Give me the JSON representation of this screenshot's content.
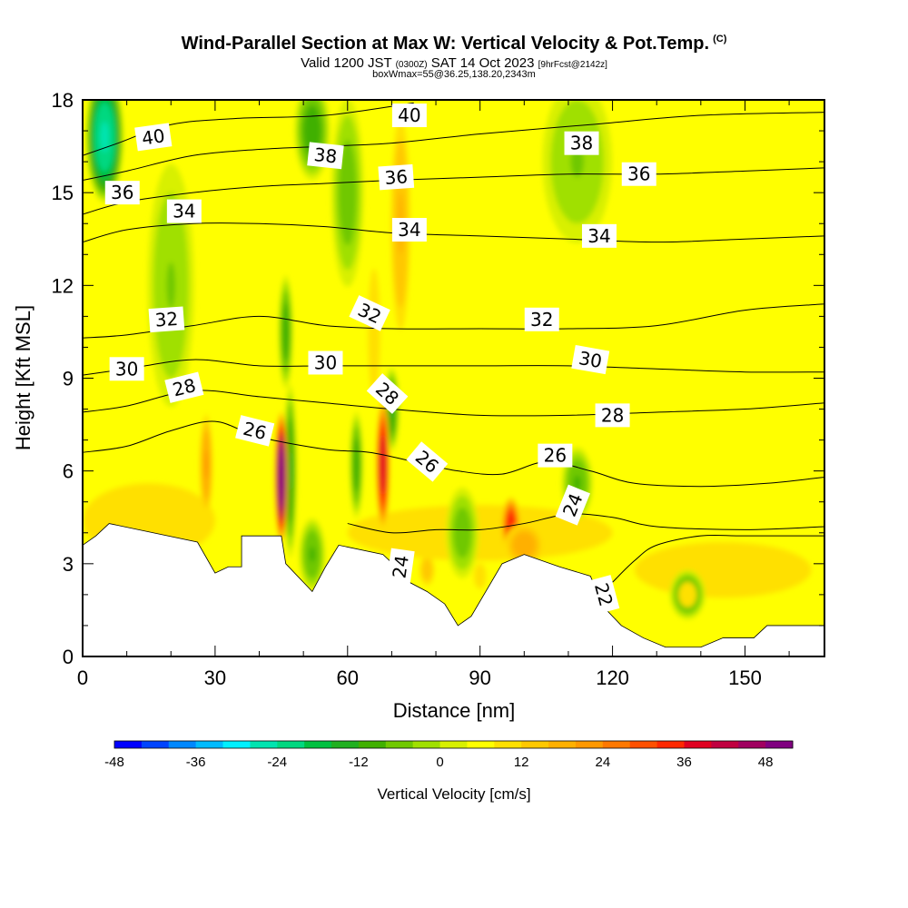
{
  "header": {
    "title": "Wind-Parallel Section at Max W: Vertical Velocity & Pot.Temp.",
    "copyright": "(C)",
    "valid_prefix": "Valid 1200 JST",
    "valid_utc": "(0300Z)",
    "valid_date": "SAT 14 Oct 2023",
    "forecast": "[9hrFcst@2142z]",
    "box_info": "boxWmax=55@36.25,138.20,2343m"
  },
  "chart_data": {
    "type": "heatmap",
    "xlabel": "Distance [nm]",
    "ylabel": "Height [Kft MSL]",
    "xlim": [
      0,
      168
    ],
    "ylim": [
      0,
      18
    ],
    "x_ticks": [
      "0",
      "30",
      "60",
      "90",
      "120",
      "150"
    ],
    "y_ticks": [
      "0",
      "3",
      "6",
      "9",
      "12",
      "15",
      "18"
    ],
    "colorbar": {
      "label": "Vertical Velocity [cm/s]",
      "min": -48,
      "max": 52,
      "step": 4,
      "tick_labels": [
        "-48",
        "-36",
        "-24",
        "-12",
        "0",
        "12",
        "24",
        "36",
        "48"
      ],
      "colors": [
        "#0000ff",
        "#0044ff",
        "#0088ff",
        "#00bbff",
        "#00f0ff",
        "#00e4b0",
        "#00d880",
        "#00c040",
        "#20b020",
        "#40b000",
        "#70c800",
        "#a0e000",
        "#d8f000",
        "#ffff00",
        "#ffe000",
        "#ffc800",
        "#ffb000",
        "#ff9800",
        "#ff7800",
        "#ff5000",
        "#ff2800",
        "#e00020",
        "#c00040",
        "#a00060",
        "#800080"
      ]
    },
    "terrain_kft": [
      [
        0,
        3.6
      ],
      [
        3,
        3.9
      ],
      [
        6,
        4.3
      ],
      [
        26,
        3.7
      ],
      [
        30,
        2.7
      ],
      [
        33,
        2.9
      ],
      [
        36,
        2.9
      ],
      [
        36,
        3.9
      ],
      [
        45,
        3.9
      ],
      [
        46,
        3.0
      ],
      [
        50,
        2.4
      ],
      [
        52,
        2.1
      ],
      [
        55,
        2.9
      ],
      [
        58,
        3.6
      ],
      [
        68,
        3.3
      ],
      [
        71,
        2.9
      ],
      [
        74,
        2.4
      ],
      [
        78,
        2.1
      ],
      [
        82,
        1.7
      ],
      [
        85,
        1.0
      ],
      [
        88,
        1.3
      ],
      [
        95,
        3.0
      ],
      [
        100,
        3.3
      ],
      [
        108,
        2.9
      ],
      [
        115,
        2.6
      ],
      [
        118,
        1.6
      ],
      [
        122,
        1.0
      ],
      [
        127,
        0.6
      ],
      [
        132,
        0.3
      ],
      [
        140,
        0.3
      ],
      [
        145,
        0.6
      ],
      [
        152,
        0.6
      ],
      [
        155,
        1.0
      ],
      [
        168,
        1.0
      ]
    ],
    "updrafts": [
      {
        "x": 45,
        "y": 5.8,
        "w_cm_s": 52,
        "width_nm": 1.5,
        "depth_kft": 2.2
      },
      {
        "x": 68,
        "y": 6.2,
        "w_cm_s": 38,
        "width_nm": 1.6,
        "depth_kft": 2.2
      },
      {
        "x": 28,
        "y": 6.2,
        "w_cm_s": 20,
        "width_nm": 1.6,
        "depth_kft": 1.8
      },
      {
        "x": 97,
        "y": 4.2,
        "w_cm_s": 34,
        "width_nm": 2.2,
        "depth_kft": 1.0
      },
      {
        "x": 100,
        "y": 3.6,
        "w_cm_s": 18,
        "width_nm": 5.0,
        "depth_kft": 0.8
      },
      {
        "x": 72,
        "y": 14.0,
        "w_cm_s": 16,
        "width_nm": 2.5,
        "depth_kft": 4.0
      },
      {
        "x": 66,
        "y": 10.5,
        "w_cm_s": 10,
        "width_nm": 2.0,
        "depth_kft": 3.0
      },
      {
        "x": 78,
        "y": 2.8,
        "w_cm_s": 14,
        "width_nm": 2.0,
        "depth_kft": 0.6
      },
      {
        "x": 90,
        "y": 2.6,
        "w_cm_s": 10,
        "width_nm": 2.0,
        "depth_kft": 0.6
      },
      {
        "x": 137,
        "y": 2.0,
        "w_cm_s": 10,
        "width_nm": 3.0,
        "depth_kft": 0.6
      }
    ],
    "downdrafts": [
      {
        "x": 47,
        "y": 6.0,
        "w_cm_s": -16,
        "width_nm": 1.3,
        "depth_kft": 2.5
      },
      {
        "x": 62,
        "y": 6.2,
        "w_cm_s": -14,
        "width_nm": 1.3,
        "depth_kft": 1.5
      },
      {
        "x": 70,
        "y": 8.0,
        "w_cm_s": -16,
        "width_nm": 1.5,
        "depth_kft": 1.2
      },
      {
        "x": 46,
        "y": 10.5,
        "w_cm_s": -14,
        "width_nm": 1.4,
        "depth_kft": 1.6
      },
      {
        "x": 5,
        "y": 16.8,
        "w_cm_s": -28,
        "width_nm": 4.0,
        "depth_kft": 2.0
      },
      {
        "x": 52,
        "y": 17.0,
        "w_cm_s": -14,
        "width_nm": 3.5,
        "depth_kft": 1.4
      },
      {
        "x": 60,
        "y": 15.0,
        "w_cm_s": -10,
        "width_nm": 3.0,
        "depth_kft": 2.5
      },
      {
        "x": 40,
        "y": 2.6,
        "w_cm_s": -14,
        "width_nm": 3.5,
        "depth_kft": 0.6
      },
      {
        "x": 52,
        "y": 3.3,
        "w_cm_s": -12,
        "width_nm": 2.5,
        "depth_kft": 1.0
      },
      {
        "x": 86,
        "y": 4.0,
        "w_cm_s": -10,
        "width_nm": 3.0,
        "depth_kft": 1.2
      },
      {
        "x": 112,
        "y": 5.6,
        "w_cm_s": -12,
        "width_nm": 3.0,
        "depth_kft": 1.0
      },
      {
        "x": 137,
        "y": 2.0,
        "w_cm_s": -14,
        "width_nm": 3.5,
        "depth_kft": 0.7
      },
      {
        "x": 20,
        "y": 12.0,
        "w_cm_s": -8,
        "width_nm": 4.0,
        "depth_kft": 3.0
      },
      {
        "x": 112,
        "y": 16.0,
        "w_cm_s": -8,
        "width_nm": 6.0,
        "depth_kft": 2.0
      }
    ],
    "pot_temp_contours": [
      {
        "level": 40,
        "points": [
          [
            0,
            16.2
          ],
          [
            8,
            16.6
          ],
          [
            20,
            17.2
          ],
          [
            35,
            17.4
          ],
          [
            55,
            17.5
          ],
          [
            75,
            17.9
          ]
        ]
      },
      {
        "level": 38,
        "points": [
          [
            0,
            15.4
          ],
          [
            10,
            15.7
          ],
          [
            25,
            16.2
          ],
          [
            40,
            16.4
          ],
          [
            55,
            16.5
          ],
          [
            70,
            16.6
          ],
          [
            90,
            16.9
          ],
          [
            115,
            17.2
          ],
          [
            140,
            17.5
          ],
          [
            168,
            17.6
          ]
        ]
      },
      {
        "level": 36,
        "points": [
          [
            0,
            14.3
          ],
          [
            10,
            14.7
          ],
          [
            25,
            15.0
          ],
          [
            40,
            15.2
          ],
          [
            55,
            15.3
          ],
          [
            70,
            15.4
          ],
          [
            90,
            15.5
          ],
          [
            110,
            15.6
          ],
          [
            130,
            15.6
          ],
          [
            150,
            15.7
          ],
          [
            168,
            15.8
          ]
        ]
      },
      {
        "level": 34,
        "points": [
          [
            0,
            13.4
          ],
          [
            10,
            13.8
          ],
          [
            25,
            14.0
          ],
          [
            40,
            14.0
          ],
          [
            55,
            13.9
          ],
          [
            70,
            13.7
          ],
          [
            90,
            13.6
          ],
          [
            110,
            13.5
          ],
          [
            130,
            13.4
          ],
          [
            150,
            13.5
          ],
          [
            168,
            13.6
          ]
        ]
      },
      {
        "level": 32,
        "points": [
          [
            0,
            10.3
          ],
          [
            10,
            10.4
          ],
          [
            25,
            10.7
          ],
          [
            40,
            11.0
          ],
          [
            55,
            10.7
          ],
          [
            70,
            10.6
          ],
          [
            90,
            10.6
          ],
          [
            110,
            10.6
          ],
          [
            130,
            10.7
          ],
          [
            150,
            11.2
          ],
          [
            168,
            11.4
          ]
        ]
      },
      {
        "level": 30,
        "points": [
          [
            0,
            9.1
          ],
          [
            10,
            9.3
          ],
          [
            25,
            9.6
          ],
          [
            40,
            9.4
          ],
          [
            55,
            9.4
          ],
          [
            70,
            9.4
          ],
          [
            90,
            9.4
          ],
          [
            110,
            9.4
          ],
          [
            130,
            9.3
          ],
          [
            150,
            9.2
          ],
          [
            168,
            9.2
          ]
        ]
      },
      {
        "level": 28,
        "points": [
          [
            0,
            7.9
          ],
          [
            10,
            8.1
          ],
          [
            25,
            8.6
          ],
          [
            40,
            8.4
          ],
          [
            55,
            8.2
          ],
          [
            70,
            8.0
          ],
          [
            90,
            7.8
          ],
          [
            110,
            7.8
          ],
          [
            130,
            7.9
          ],
          [
            150,
            8.0
          ],
          [
            168,
            8.2
          ]
        ]
      },
      {
        "level": 26,
        "points": [
          [
            0,
            6.6
          ],
          [
            10,
            6.8
          ],
          [
            20,
            7.3
          ],
          [
            30,
            7.6
          ],
          [
            40,
            7.1
          ],
          [
            55,
            6.7
          ],
          [
            65,
            6.6
          ],
          [
            75,
            6.3
          ],
          [
            85,
            6.0
          ],
          [
            95,
            5.9
          ],
          [
            105,
            6.3
          ],
          [
            115,
            6.0
          ],
          [
            125,
            5.6
          ],
          [
            140,
            5.5
          ],
          [
            155,
            5.6
          ],
          [
            168,
            5.8
          ]
        ]
      },
      {
        "level": 24,
        "points": [
          [
            60,
            4.3
          ],
          [
            70,
            4.0
          ],
          [
            80,
            4.1
          ],
          [
            90,
            4.1
          ],
          [
            100,
            4.3
          ],
          [
            110,
            4.6
          ],
          [
            120,
            4.5
          ],
          [
            130,
            4.2
          ],
          [
            150,
            4.1
          ],
          [
            168,
            4.2
          ]
        ]
      },
      {
        "level": 22,
        "points": [
          [
            120,
            2.4
          ],
          [
            125,
            3.1
          ],
          [
            130,
            3.6
          ],
          [
            140,
            3.9
          ],
          [
            150,
            3.9
          ],
          [
            168,
            3.9
          ]
        ]
      }
    ],
    "contour_labels": [
      {
        "text": "40",
        "x": 16,
        "y": 16.8,
        "angle": -8
      },
      {
        "text": "40",
        "x": 74,
        "y": 17.5,
        "angle": 0
      },
      {
        "text": "38",
        "x": 55,
        "y": 16.2,
        "angle": 6
      },
      {
        "text": "38",
        "x": 113,
        "y": 16.6,
        "angle": 0
      },
      {
        "text": "36",
        "x": 9,
        "y": 15.0,
        "angle": 0
      },
      {
        "text": "36",
        "x": 71,
        "y": 15.5,
        "angle": -4
      },
      {
        "text": "36",
        "x": 126,
        "y": 15.6,
        "angle": 0
      },
      {
        "text": "34",
        "x": 23,
        "y": 14.4,
        "angle": 0
      },
      {
        "text": "34",
        "x": 74,
        "y": 13.8,
        "angle": 0
      },
      {
        "text": "34",
        "x": 117,
        "y": 13.6,
        "angle": 0
      },
      {
        "text": "32",
        "x": 19,
        "y": 10.9,
        "angle": -4
      },
      {
        "text": "32",
        "x": 65,
        "y": 11.1,
        "angle": 25
      },
      {
        "text": "32",
        "x": 104,
        "y": 10.9,
        "angle": 0
      },
      {
        "text": "30",
        "x": 10,
        "y": 9.3,
        "angle": 0
      },
      {
        "text": "30",
        "x": 55,
        "y": 9.5,
        "angle": 0
      },
      {
        "text": "30",
        "x": 115,
        "y": 9.6,
        "angle": 10
      },
      {
        "text": "28",
        "x": 23,
        "y": 8.7,
        "angle": -14
      },
      {
        "text": "28",
        "x": 69,
        "y": 8.5,
        "angle": 42
      },
      {
        "text": "28",
        "x": 120,
        "y": 7.8,
        "angle": 0
      },
      {
        "text": "26",
        "x": 39,
        "y": 7.3,
        "angle": 14
      },
      {
        "text": "26",
        "x": 78,
        "y": 6.3,
        "angle": 40
      },
      {
        "text": "26",
        "x": 107,
        "y": 6.5,
        "angle": 0
      },
      {
        "text": "24",
        "x": 111,
        "y": 4.9,
        "angle": -68
      },
      {
        "text": "24",
        "x": 72,
        "y": 2.9,
        "angle": -82
      },
      {
        "text": "22",
        "x": 118,
        "y": 2.0,
        "angle": 75
      }
    ]
  }
}
